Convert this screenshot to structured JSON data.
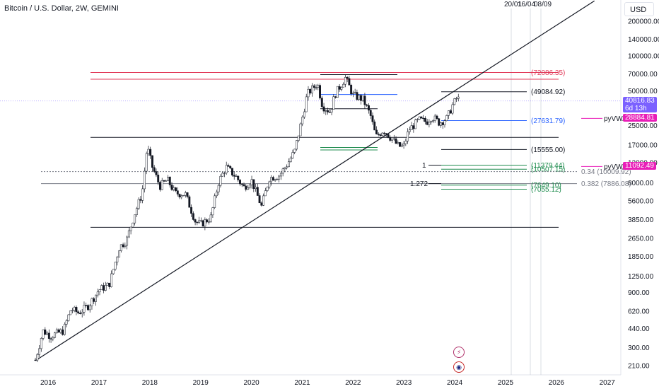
{
  "header": {
    "title": "Bitcoin / U.S. Dollar, 2W, GEMINI",
    "currency": "USD"
  },
  "event_labels": [
    "20/01",
    "16/04",
    "08/09"
  ],
  "current_price": {
    "value": "40816.83",
    "countdown": "6d 13h",
    "color": "#7b61ff"
  },
  "vwap_tags": [
    {
      "label": "pyVWAP",
      "value": "28884.81",
      "color": "#e91eb8"
    },
    {
      "label": "pyVWAP",
      "value": "11092.49",
      "color": "#e91eb8"
    }
  ],
  "icons": [
    "lightning-icon",
    "us-flag-icon"
  ],
  "chart_data": {
    "type": "candlestick",
    "title": "Bitcoin / U.S. Dollar, 2W, GEMINI",
    "y_scale": "log",
    "ylim": [
      190,
      290000
    ],
    "x_range": [
      2015.6,
      2027.3
    ],
    "x_ticks": [
      "2016",
      "2017",
      "2018",
      "2019",
      "2020",
      "2021",
      "2022",
      "2023",
      "2024",
      "2025",
      "2026",
      "2027"
    ],
    "y_ticks": [
      "200000.00",
      "140000.00",
      "100000.00",
      "70000.00",
      "50000.00",
      "25000.00",
      "17000.00",
      "12000.00",
      "8000.00",
      "5600.00",
      "3850.00",
      "2650.00",
      "1850.00",
      "1250.00",
      "900.00",
      "620.00",
      "440.00",
      "300.00",
      "210.00"
    ],
    "price_path": [
      [
        2015.75,
        235
      ],
      [
        2015.9,
        420
      ],
      [
        2016.05,
        380
      ],
      [
        2016.3,
        420
      ],
      [
        2016.45,
        650
      ],
      [
        2016.6,
        600
      ],
      [
        2016.8,
        700
      ],
      [
        2017.0,
        950
      ],
      [
        2017.2,
        1050
      ],
      [
        2017.4,
        2200
      ],
      [
        2017.55,
        2600
      ],
      [
        2017.7,
        4300
      ],
      [
        2017.85,
        6500
      ],
      [
        2017.95,
        16500
      ],
      [
        2018.05,
        11000
      ],
      [
        2018.2,
        7500
      ],
      [
        2018.35,
        8500
      ],
      [
        2018.5,
        6500
      ],
      [
        2018.7,
        6400
      ],
      [
        2018.9,
        3700
      ],
      [
        2019.0,
        3500
      ],
      [
        2019.2,
        4000
      ],
      [
        2019.35,
        8000
      ],
      [
        2019.5,
        11000
      ],
      [
        2019.7,
        9000
      ],
      [
        2019.85,
        7300
      ],
      [
        2020.0,
        8500
      ],
      [
        2020.2,
        5000
      ],
      [
        2020.35,
        8800
      ],
      [
        2020.55,
        9300
      ],
      [
        2020.7,
        11500
      ],
      [
        2020.85,
        15000
      ],
      [
        2021.0,
        29000
      ],
      [
        2021.1,
        47000
      ],
      [
        2021.3,
        58000
      ],
      [
        2021.4,
        37000
      ],
      [
        2021.55,
        33000
      ],
      [
        2021.65,
        47000
      ],
      [
        2021.85,
        65000
      ],
      [
        2022.0,
        46000
      ],
      [
        2022.2,
        42000
      ],
      [
        2022.35,
        30000
      ],
      [
        2022.45,
        20000
      ],
      [
        2022.6,
        23000
      ],
      [
        2022.75,
        19500
      ],
      [
        2022.9,
        16500
      ],
      [
        2023.0,
        16700
      ],
      [
        2023.1,
        23000
      ],
      [
        2023.3,
        28000
      ],
      [
        2023.45,
        27000
      ],
      [
        2023.55,
        30000
      ],
      [
        2023.7,
        26500
      ],
      [
        2023.85,
        29000
      ],
      [
        2023.95,
        37000
      ],
      [
        2024.05,
        44000
      ],
      [
        2024.1,
        40816
      ]
    ],
    "horizontal_levels": [
      {
        "value": 72086.35,
        "label": "(72086.35)",
        "color": "#e23b5a"
      },
      {
        "value": 63000,
        "label": "",
        "color": "#e23b5a"
      },
      {
        "value": 69000,
        "label": "",
        "color": "#131722"
      },
      {
        "value": 49084.92,
        "label": "(49084.92)",
        "color": "#131722"
      },
      {
        "value": 27631.79,
        "label": "(27631.79)",
        "color": "#2962ff"
      },
      {
        "value": 19800,
        "label": "",
        "color": "#131722"
      },
      {
        "value": 15555.0,
        "label": "(15555.00)",
        "color": "#131722"
      },
      {
        "value": 11379.44,
        "label": "(11379.44)",
        "color": "#1e8c4e"
      },
      {
        "value": 10507.15,
        "label": "(10507.15)",
        "color": "#1e8c4e"
      },
      {
        "value": 10009.92,
        "label": "0.34 (10009.92)",
        "color": "#787b86"
      },
      {
        "value": 7886.08,
        "label": "0.382 (7886.08)",
        "color": "#787b86"
      },
      {
        "value": 7649.1,
        "label": "(7649.10)",
        "color": "#1e8c4e"
      },
      {
        "value": 7055.12,
        "label": "(7055.12)",
        "color": "#1e8c4e"
      },
      {
        "value": 3300,
        "label": "",
        "color": "#131722"
      }
    ],
    "fib_labels": [
      "1",
      "1.272"
    ],
    "trendline": {
      "from": [
        2015.75,
        232
      ],
      "to": [
        2026.75,
        300000
      ],
      "color": "#131722"
    }
  }
}
